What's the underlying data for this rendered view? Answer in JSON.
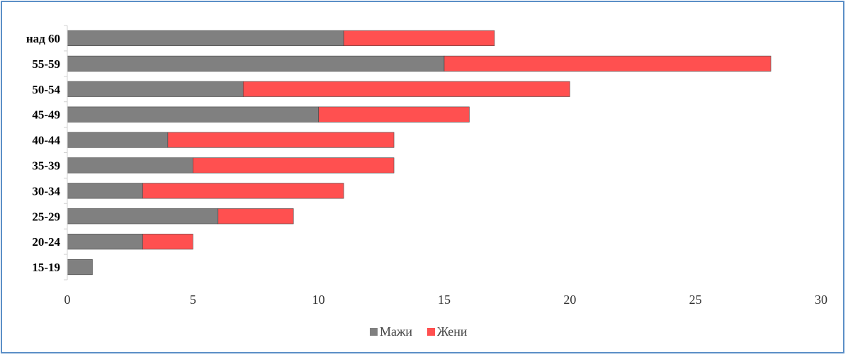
{
  "chart_data": {
    "type": "bar",
    "orientation": "horizontal",
    "stacked": true,
    "categories": [
      "15-19",
      "20-24",
      "25-29",
      "30-34",
      "35-39",
      "40-44",
      "45-49",
      "50-54",
      "55-59",
      "над 60"
    ],
    "series": [
      {
        "name": "Мажи",
        "color": "#808080",
        "values": [
          1,
          3,
          6,
          3,
          5,
          4,
          10,
          7,
          15,
          11
        ]
      },
      {
        "name": "Жени",
        "color": "#ff5050",
        "values": [
          0,
          2,
          3,
          8,
          8,
          9,
          6,
          13,
          13,
          6
        ]
      }
    ],
    "xlim": [
      0,
      30
    ],
    "xticks": [
      0,
      5,
      10,
      15,
      20,
      25,
      30
    ],
    "grid": false,
    "legend_position": "bottom"
  }
}
